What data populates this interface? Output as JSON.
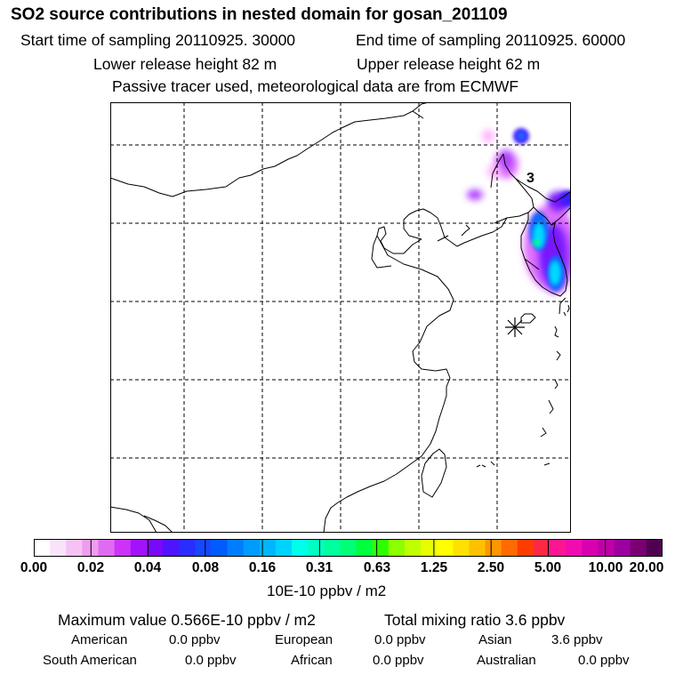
{
  "header": {
    "title": "SO2 source contributions in nested domain for gosan_201109",
    "start_time": "Start time of sampling 20110925. 30000",
    "end_time": "End time of sampling 20110925. 60000",
    "lower_height": "Lower release height   82 m",
    "upper_height": "Upper release height   62 m",
    "tracer_note": "Passive tracer used, meteorological data are from ECMWF"
  },
  "map": {
    "annotation": "3",
    "receptor_marker": "asterisk-icon",
    "plume_colors": [
      "#ffb0ff",
      "#e070ff",
      "#b040ff",
      "#7a14ff",
      "#3d1aff",
      "#0f6bff",
      "#00d8ff",
      "#00ff66"
    ]
  },
  "colorbar": {
    "colors": [
      "#ffffff",
      "#fbe2fb",
      "#f6c2f6",
      "#f09cf0",
      "#df6cf0",
      "#cc33f7",
      "#a114fb",
      "#7a08fb",
      "#4f14ff",
      "#2a2dff",
      "#1548ff",
      "#005cff",
      "#007dff",
      "#009bff",
      "#00b5ff",
      "#00d2ff",
      "#00ffe9",
      "#00ffc0",
      "#00ff9e",
      "#00ff78",
      "#00ff3c",
      "#2cff00",
      "#8cff00",
      "#c0ff00",
      "#e6ff00",
      "#ffff00",
      "#ffe000",
      "#ffc000",
      "#ff9600",
      "#ff6b00",
      "#ff3c00",
      "#ff2844",
      "#ff1493",
      "#f00cb0",
      "#d800b0",
      "#c000a8",
      "#9c00a0",
      "#780070",
      "#500050"
    ],
    "tick_labels": [
      "0.00",
      "0.02",
      "0.04",
      "0.08",
      "0.16",
      "0.31",
      "0.63",
      "1.25",
      "2.50",
      "5.00",
      "10.00",
      "20.00"
    ],
    "unit": "10E-10 ppbv / m2"
  },
  "stats": {
    "maximum": "Maximum value  0.566E-10 ppbv / m2",
    "total": "Total mixing ratio       3.6 ppbv",
    "regions": [
      {
        "name": "American",
        "value": "0.0 ppbv"
      },
      {
        "name": "European",
        "value": "0.0 ppbv"
      },
      {
        "name": "Asian",
        "value": "3.6 ppbv"
      },
      {
        "name": "South American",
        "value": "0.0 ppbv"
      },
      {
        "name": "African",
        "value": "0.0 ppbv"
      },
      {
        "name": "Australian",
        "value": "0.0 ppbv"
      }
    ]
  }
}
